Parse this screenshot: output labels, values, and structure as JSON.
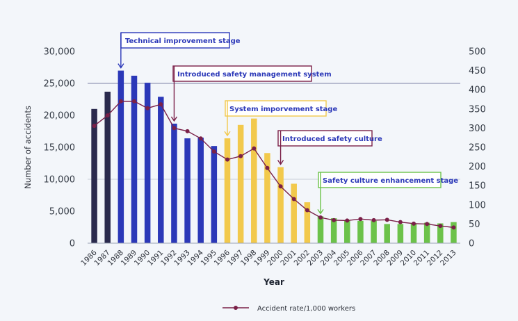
{
  "chart_data": {
    "type": "bar",
    "categories": [
      "1986",
      "1987",
      "1988",
      "1989",
      "1990",
      "1991",
      "1992",
      "1993",
      "1994",
      "1995",
      "1996",
      "1997",
      "1998",
      "1999",
      "2000",
      "2001",
      "2002",
      "2003",
      "2004",
      "2005",
      "2006",
      "2007",
      "2008",
      "2009",
      "2010",
      "2011",
      "2012",
      "2013"
    ],
    "series": [
      {
        "kind": "bar",
        "axis": "left",
        "values": [
          21000,
          23700,
          27000,
          26200,
          25100,
          22900,
          18700,
          16400,
          16500,
          15200,
          16400,
          18500,
          19500,
          14100,
          11900,
          9300,
          6400,
          4200,
          3900,
          3600,
          3500,
          3500,
          3000,
          3000,
          3100,
          3200,
          3100,
          3300
        ],
        "colors": [
          "#2a2a4d",
          "#2a2a4d",
          "#2b38b8",
          "#2b38b8",
          "#2b38b8",
          "#2b38b8",
          "#2b38b8",
          "#2b38b8",
          "#2b38b8",
          "#2b38b8",
          "#f2c94c",
          "#f2c94c",
          "#f2c94c",
          "#f2c94c",
          "#f2c94c",
          "#f2c94c",
          "#f2c94c",
          "#6cc24a",
          "#6cc24a",
          "#6cc24a",
          "#6cc24a",
          "#6cc24a",
          "#6cc24a",
          "#6cc24a",
          "#6cc24a",
          "#6cc24a",
          "#6cc24a",
          "#6cc24a"
        ]
      },
      {
        "kind": "line",
        "axis": "right",
        "name": "Accident rate/1,000 workers",
        "color": "#7a2048",
        "values": [
          306,
          333,
          370,
          370,
          352,
          362,
          300,
          292,
          273,
          239,
          218,
          227,
          247,
          196,
          148,
          115,
          86,
          67,
          60,
          59,
          63,
          60,
          61,
          55,
          51,
          50,
          45,
          41
        ]
      }
    ],
    "ylabel": "Number of accidents",
    "xlabel": "Year",
    "ylim": [
      0,
      30000
    ],
    "yticks": [
      "0",
      "5,000",
      "10,000",
      "15,000",
      "20,000",
      "25,000",
      "30,000"
    ],
    "y2lim": [
      0,
      500
    ],
    "y2ticks": [
      "0",
      "50",
      "100",
      "150",
      "200",
      "250",
      "300",
      "350",
      "400",
      "450",
      "500"
    ],
    "reference_lines": [
      {
        "axis": "left",
        "value": 25000,
        "color": "#7c83a6"
      },
      {
        "axis": "left",
        "value": 10000,
        "color": "#c8cdd8"
      }
    ],
    "annotations": [
      {
        "text": "Technical improvement stage",
        "year": "1988",
        "color": "#2b38b8"
      },
      {
        "text": "Introduced safety management system",
        "year": "1992",
        "color": "#7a2048"
      },
      {
        "text": "System imporvement stage",
        "year": "1996",
        "color": "#f2c94c"
      },
      {
        "text": "Introduced safety culture",
        "year": "2000",
        "color": "#7a2048"
      },
      {
        "text": "Safety culture enhancement stage",
        "year": "2003",
        "color": "#6cc24a"
      }
    ],
    "legend": {
      "position": "bottom-center",
      "label": "Accident rate/1,000 workers"
    }
  }
}
